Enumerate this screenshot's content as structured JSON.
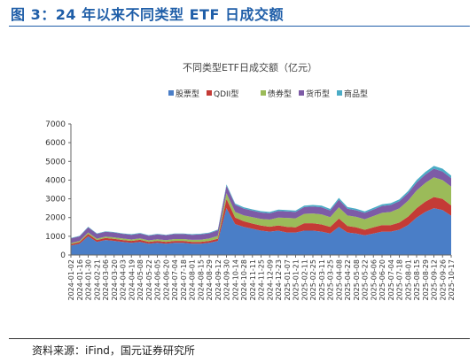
{
  "figure_title": "图 3：24 年以来不同类型 ETF 日成交额",
  "source": "资料来源：iFind，国元证券研究所",
  "colors": {
    "股票型": "#4a7ec7",
    "QDII型": "#c43b36",
    "债券型": "#9bbb59",
    "货币型": "#7d5ba6",
    "商品型": "#4bacc6"
  },
  "chart_data": {
    "type": "area",
    "stacked": true,
    "title": "不同类型ETF日成交额（亿元）",
    "legend_position": "top",
    "ylim": [
      0,
      7000
    ],
    "yticks": [
      0,
      1000,
      2000,
      3000,
      4000,
      5000,
      6000,
      7000
    ],
    "grid": false,
    "xtick_labels": [
      "2024-01-02",
      "2024-01-16",
      "2024-01-30",
      "2024-02-21",
      "2024-03-06",
      "2024-03-20",
      "2024-04-03",
      "2024-04-19",
      "2024-05-08",
      "2024-05-22",
      "2024-06-05",
      "2024-06-20",
      "2024-07-04",
      "2024-07-18",
      "2024-08-01",
      "2024-08-15",
      "2024-08-29",
      "2024-09-12",
      "2024-09-30",
      "2024-10-14",
      "2024-10-28",
      "2024-11-11",
      "2024-11-25",
      "2024-12-09",
      "2024-12-23",
      "2025-01-07",
      "2025-01-21",
      "2025-02-11",
      "2025-02-25",
      "2025-03-11",
      "2025-03-25",
      "2025-04-08",
      "2025-04-22",
      "2025-05-08",
      "2025-05-22",
      "2025-06-06",
      "2025-06-20",
      "2025-07-04",
      "2025-07-18",
      "2025-08-01",
      "2025-08-15",
      "2025-08-29",
      "2025-09-12",
      "2025-09-26",
      "2025-10-17"
    ],
    "series": [
      {
        "name": "股票型",
        "values": [
          500,
          600,
          1000,
          700,
          800,
          750,
          700,
          650,
          700,
          600,
          650,
          600,
          650,
          650,
          600,
          600,
          650,
          750,
          2500,
          1650,
          1500,
          1400,
          1300,
          1250,
          1300,
          1200,
          1200,
          1300,
          1300,
          1250,
          1150,
          1500,
          1200,
          1150,
          1050,
          1150,
          1250,
          1250,
          1350,
          1600,
          2000,
          2300,
          2500,
          2400,
          2100
        ]
      },
      {
        "name": "QDII型",
        "values": [
          80,
          90,
          120,
          100,
          110,
          110,
          100,
          100,
          110,
          100,
          100,
          100,
          100,
          100,
          100,
          100,
          100,
          120,
          500,
          350,
          300,
          280,
          270,
          260,
          280,
          300,
          280,
          400,
          400,
          380,
          350,
          450,
          350,
          330,
          300,
          330,
          350,
          350,
          380,
          450,
          500,
          550,
          600,
          600,
          550
        ]
      },
      {
        "name": "债券型",
        "values": [
          60,
          60,
          80,
          70,
          70,
          80,
          80,
          80,
          80,
          80,
          90,
          90,
          100,
          100,
          110,
          120,
          130,
          150,
          300,
          300,
          320,
          340,
          360,
          380,
          420,
          480,
          480,
          500,
          520,
          540,
          520,
          600,
          560,
          560,
          560,
          600,
          650,
          700,
          760,
          850,
          950,
          1000,
          1050,
          1000,
          1000
        ]
      },
      {
        "name": "货币型",
        "values": [
          250,
          250,
          280,
          260,
          260,
          260,
          250,
          250,
          260,
          250,
          260,
          260,
          270,
          270,
          270,
          280,
          280,
          300,
          400,
          380,
          360,
          350,
          340,
          340,
          350,
          350,
          340,
          360,
          370,
          380,
          360,
          400,
          360,
          350,
          340,
          350,
          370,
          370,
          380,
          400,
          420,
          440,
          460,
          460,
          450
        ]
      },
      {
        "name": "商品型",
        "values": [
          20,
          20,
          30,
          25,
          25,
          25,
          25,
          30,
          30,
          30,
          30,
          30,
          30,
          30,
          30,
          35,
          35,
          40,
          70,
          70,
          70,
          65,
          70,
          70,
          70,
          75,
          70,
          80,
          80,
          85,
          80,
          100,
          90,
          85,
          80,
          85,
          90,
          95,
          100,
          110,
          130,
          140,
          150,
          150,
          140
        ]
      }
    ]
  }
}
